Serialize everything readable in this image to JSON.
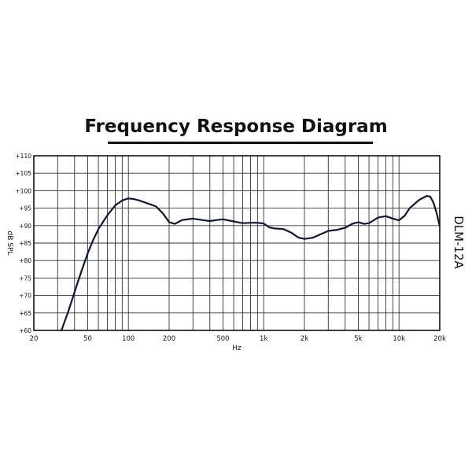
{
  "chart_data": {
    "type": "line",
    "title": "Frequency Response Diagram",
    "xlabel": "Hz",
    "ylabel": "dB SPL",
    "model_label": "DLM-12A",
    "x_scale": "log",
    "xlim": [
      20,
      20000
    ],
    "ylim": [
      60,
      110
    ],
    "grid": true,
    "x_ticks": [
      {
        "value": 20,
        "label": "20"
      },
      {
        "value": 50,
        "label": "50"
      },
      {
        "value": 100,
        "label": "100"
      },
      {
        "value": 200,
        "label": "200"
      },
      {
        "value": 500,
        "label": "500"
      },
      {
        "value": 1000,
        "label": "1k"
      },
      {
        "value": 2000,
        "label": "2k"
      },
      {
        "value": 5000,
        "label": "5k"
      },
      {
        "value": 10000,
        "label": "10k"
      },
      {
        "value": 20000,
        "label": "20k"
      }
    ],
    "y_ticks": [
      {
        "value": 60,
        "label": "+60"
      },
      {
        "value": 65,
        "label": "+65"
      },
      {
        "value": 70,
        "label": "+70"
      },
      {
        "value": 75,
        "label": "+75"
      },
      {
        "value": 80,
        "label": "+80"
      },
      {
        "value": 85,
        "label": "+85"
      },
      {
        "value": 90,
        "label": "+90"
      },
      {
        "value": 95,
        "label": "+95"
      },
      {
        "value": 100,
        "label": "+100"
      },
      {
        "value": 105,
        "label": "+105"
      },
      {
        "value": 110,
        "label": "+110"
      }
    ],
    "series": [
      {
        "color": "#0f1638",
        "x": [
          32,
          36,
          40,
          45,
          50,
          55,
          60,
          70,
          80,
          90,
          100,
          110,
          120,
          140,
          160,
          180,
          200,
          220,
          250,
          300,
          350,
          400,
          450,
          500,
          600,
          700,
          800,
          900,
          1000,
          1100,
          1200,
          1400,
          1600,
          1800,
          2000,
          2300,
          2600,
          3000,
          3500,
          4000,
          4500,
          5000,
          5500,
          6000,
          7000,
          8000,
          9000,
          10000,
          11000,
          12000,
          14000,
          16000,
          17000,
          18000,
          19000,
          20000
        ],
        "values": [
          60,
          65.5,
          71,
          77,
          82,
          86,
          89,
          93,
          95.8,
          97.2,
          97.8,
          97.6,
          97.2,
          96.3,
          95.5,
          93.5,
          91,
          90.5,
          91.6,
          92,
          91.6,
          91.3,
          91.6,
          91.8,
          91.2,
          90.7,
          90.8,
          90.8,
          90.6,
          89.5,
          89.2,
          89,
          88,
          86.6,
          86.2,
          86.5,
          87.4,
          88.5,
          88.8,
          89.4,
          90.5,
          91,
          90.5,
          90.7,
          92.3,
          92.7,
          92,
          91.5,
          92.8,
          95,
          97.3,
          98.5,
          98.3,
          96.5,
          93.5,
          89.8
        ]
      }
    ]
  }
}
